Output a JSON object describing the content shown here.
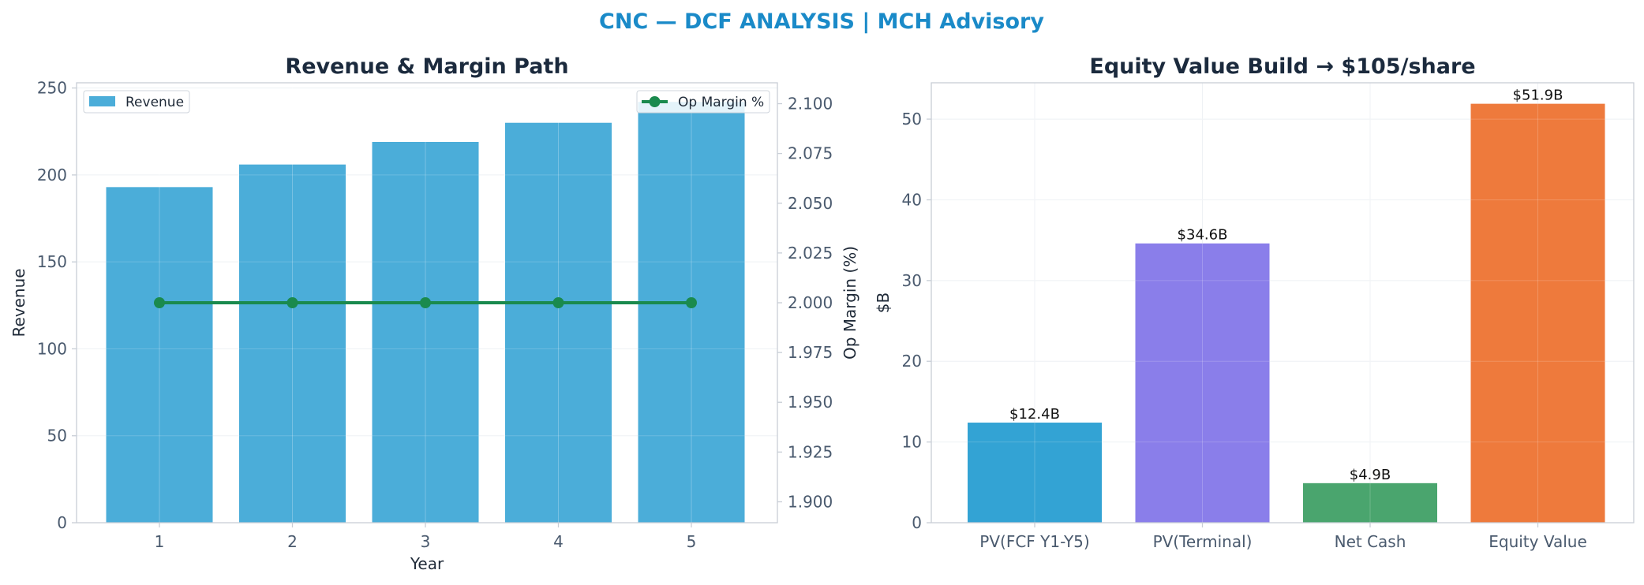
{
  "suptitle": "CNC — DCF ANALYSIS | MCH Advisory",
  "colors": {
    "suptitle": "#1a8ac8",
    "revenue_bar": "#4badd9",
    "margin_line": "#1a8a4e",
    "axes_spine": "#c8ced6",
    "grid": "#eceff3"
  },
  "chart_data": [
    {
      "type": "bar",
      "title": "Revenue & Margin Path",
      "xlabel": "Year",
      "ylabel": "Revenue",
      "y2label": "Op Margin (%)",
      "categories": [
        "1",
        "2",
        "3",
        "4",
        "5"
      ],
      "ylim": [
        0,
        253
      ],
      "yticks": [
        "0",
        "50",
        "100",
        "150",
        "200",
        "250"
      ],
      "y2lim": [
        1.8895,
        2.1105
      ],
      "y2ticks": [
        "1.900",
        "1.925",
        "1.950",
        "1.975",
        "2.000",
        "2.025",
        "2.050",
        "2.075",
        "2.100"
      ],
      "grid": true,
      "series": [
        {
          "name": "Revenue",
          "type": "bar",
          "axis": "left",
          "values": [
            193,
            206,
            219,
            230,
            242
          ],
          "legend_position": "upper-left"
        },
        {
          "name": "Op Margin %",
          "type": "line",
          "axis": "right",
          "values": [
            2.0,
            2.0,
            2.0,
            2.0,
            2.0
          ],
          "legend_position": "upper-right"
        }
      ]
    },
    {
      "type": "bar",
      "title": "Equity Value Build → $105/share",
      "xlabel": "",
      "ylabel": "$B",
      "categories": [
        "PV(FCF Y1-Y5)",
        "PV(Terminal)",
        "Net Cash",
        "Equity Value"
      ],
      "values": [
        12.4,
        34.6,
        4.9,
        51.9
      ],
      "data_labels": [
        "$12.4B",
        "$34.6B",
        "$4.9B",
        "$51.9B"
      ],
      "bar_colors": [
        "#33a3d4",
        "#8a7eea",
        "#4aa56e",
        "#ee7a3c"
      ],
      "ylim": [
        0,
        54.5
      ],
      "yticks": [
        "0",
        "10",
        "20",
        "30",
        "40",
        "50"
      ],
      "grid": true
    }
  ]
}
